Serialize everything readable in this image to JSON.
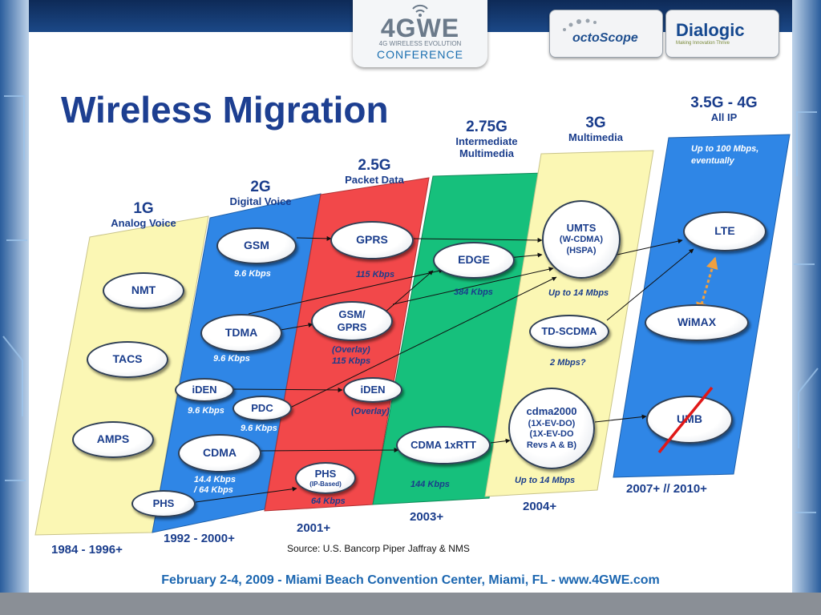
{
  "header": {
    "logo_main": "4GWE",
    "logo_sub": "4G WIRELESS EVOLUTION",
    "logo_conference": "CONFERENCE",
    "sponsor1": "octoScope",
    "sponsor2": "Dialogic",
    "sponsor2_tagline": "Making Innovation Thrive"
  },
  "title": "Wireless Migration",
  "generations": [
    {
      "name": "1G",
      "desc": "Analog Voice",
      "years": "1984 - 1996+",
      "color": "#fbf7b4"
    },
    {
      "name": "2G",
      "desc": "Digital Voice",
      "years": "1992 - 2000+",
      "color": "#2f86e6"
    },
    {
      "name": "2.5G",
      "desc": "Packet Data",
      "years": "2001+",
      "color": "#f2484a"
    },
    {
      "name": "2.75G",
      "desc_line1": "Intermediate",
      "desc_line2": "Multimedia",
      "years": "2003+",
      "color": "#16c07c"
    },
    {
      "name": "3G",
      "desc": "Multimedia",
      "years": "2004+",
      "color": "#fbf7b4"
    },
    {
      "name": "3.5G - 4G",
      "desc": "All IP",
      "years": "2007+ // 2010+",
      "note_line1": "Up to 100 Mbps,",
      "note_line2": "eventually",
      "color": "#2f86e6"
    }
  ],
  "nodes": {
    "nmt": "NMT",
    "tacs": "TACS",
    "amps": "AMPS",
    "gsm": "GSM",
    "tdma": "TDMA",
    "iden": "iDEN",
    "pdc": "PDC",
    "cdma": "CDMA",
    "phs": "PHS",
    "gprs": "GPRS",
    "gsm_gprs_1": "GSM/",
    "gsm_gprs_2": "GPRS",
    "iden2": "iDEN",
    "phs2": "PHS",
    "phs2_sub": "(IP-Based)",
    "edge": "EDGE",
    "cdma1x": "CDMA 1xRTT",
    "umts_1": "UMTS",
    "umts_2": "(W-CDMA)",
    "umts_3": "(HSPA)",
    "tdscdma": "TD-SCDMA",
    "cdma2000_1": "cdma2000",
    "cdma2000_2": "(1X-EV-DO)",
    "cdma2000_3": "(1X-EV-DO",
    "cdma2000_4": "Revs A & B)",
    "lte": "LTE",
    "wimax": "WiMAX",
    "umb": "UMB"
  },
  "rates": {
    "gsm": "9.6 Kbps",
    "tdma": "9.6 Kbps",
    "iden": "9.6 Kbps",
    "pdc": "9.6 Kbps",
    "cdma_1": "14.4 Kbps",
    "cdma_2": "/ 64 Kbps",
    "gprs": "115 Kbps",
    "gsm_gprs_1": "(Overlay)",
    "gsm_gprs_2": "115 Kbps",
    "iden2": "(Overlay)",
    "phs2": "64 Kbps",
    "edge": "384 Kbps",
    "cdma1x": "144 Kbps",
    "umts": "Up to 14 Mbps",
    "tdscdma": "2 Mbps?",
    "cdma2000": "Up to 14 Mbps"
  },
  "source": "Source:  U.S. Bancorp Piper Jaffray & NMS",
  "footer": "February 2-4, 2009  -  Miami Beach Convention Center, Miami, FL  -  www.4GWE.com"
}
